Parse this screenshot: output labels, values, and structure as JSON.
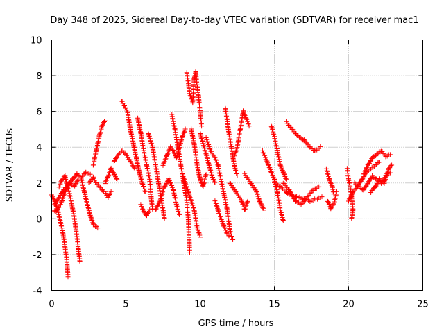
{
  "chart_data": {
    "type": "scatter",
    "title": "Day 348 of 2025, Sidereal Day-to-day VTEC variation (SDTVAR) for receiver mac1",
    "xlabel": "GPS time / hours",
    "ylabel": "SDTVAR / TECUs",
    "xlim": [
      0,
      25
    ],
    "ylim": [
      -4,
      10
    ],
    "x_ticks": [
      0,
      5,
      10,
      15,
      20,
      25
    ],
    "y_ticks": [
      -4,
      -2,
      0,
      2,
      4,
      6,
      8,
      10
    ],
    "x_tick_labels": [
      "0",
      "5",
      "10",
      "15",
      "20",
      "25"
    ],
    "y_tick_labels": [
      "-4",
      "-2",
      "0",
      "2",
      "4",
      "6",
      "8",
      "10"
    ],
    "grid": true,
    "marker": "+",
    "color": "#ff0000",
    "series": [
      {
        "name": "SDTVAR",
        "segments": [
          [
            [
              0.0,
              1.3
            ],
            [
              0.2,
              1.0
            ],
            [
              0.4,
              0.5
            ],
            [
              0.6,
              -0.2
            ],
            [
              0.8,
              -1.0
            ],
            [
              1.0,
              -2.2
            ],
            [
              1.1,
              -3.2
            ]
          ],
          [
            [
              0.0,
              0.5
            ],
            [
              0.3,
              0.4
            ],
            [
              0.6,
              0.8
            ],
            [
              0.9,
              1.5
            ],
            [
              1.2,
              2.0
            ],
            [
              1.5,
              1.8
            ],
            [
              1.8,
              2.2
            ]
          ],
          [
            [
              0.5,
              1.8
            ],
            [
              0.7,
              2.2
            ],
            [
              0.9,
              2.4
            ],
            [
              1.0,
              2.0
            ],
            [
              1.2,
              1.4
            ],
            [
              1.5,
              0.2
            ],
            [
              1.7,
              -1.0
            ],
            [
              1.9,
              -2.4
            ]
          ],
          [
            [
              0.2,
              0.8
            ],
            [
              0.5,
              1.2
            ],
            [
              0.8,
              1.6
            ],
            [
              1.1,
              1.9
            ],
            [
              1.4,
              2.2
            ],
            [
              1.7,
              2.5
            ],
            [
              2.0,
              2.3
            ],
            [
              2.3,
              2.6
            ],
            [
              2.6,
              2.5
            ]
          ],
          [
            [
              2.0,
              2.2
            ],
            [
              2.2,
              1.5
            ],
            [
              2.4,
              0.8
            ],
            [
              2.6,
              0.2
            ],
            [
              2.8,
              -0.3
            ],
            [
              3.1,
              -0.5
            ]
          ],
          [
            [
              2.5,
              2.0
            ],
            [
              2.8,
              2.3
            ],
            [
              3.0,
              2.0
            ],
            [
              3.2,
              1.8
            ],
            [
              3.4,
              1.6
            ],
            [
              3.6,
              1.5
            ],
            [
              3.8,
              1.2
            ],
            [
              4.0,
              1.5
            ]
          ],
          [
            [
              2.8,
              3.0
            ],
            [
              3.0,
              3.8
            ],
            [
              3.2,
              4.6
            ],
            [
              3.4,
              5.2
            ],
            [
              3.6,
              5.5
            ]
          ],
          [
            [
              3.6,
              2.0
            ],
            [
              3.8,
              2.4
            ],
            [
              4.0,
              2.8
            ],
            [
              4.2,
              2.5
            ],
            [
              4.4,
              2.2
            ]
          ],
          [
            [
              4.2,
              3.2
            ],
            [
              4.5,
              3.6
            ],
            [
              4.8,
              3.8
            ],
            [
              5.0,
              3.6
            ],
            [
              5.3,
              3.2
            ],
            [
              5.6,
              2.8
            ]
          ],
          [
            [
              4.7,
              6.6
            ],
            [
              4.9,
              6.3
            ],
            [
              5.1,
              6.0
            ],
            [
              5.3,
              5.0
            ],
            [
              5.5,
              4.2
            ],
            [
              5.7,
              3.4
            ],
            [
              5.9,
              2.6
            ],
            [
              6.1,
              2.0
            ],
            [
              6.3,
              1.5
            ]
          ],
          [
            [
              5.8,
              5.6
            ],
            [
              6.0,
              4.8
            ],
            [
              6.2,
              3.8
            ],
            [
              6.4,
              3.0
            ],
            [
              6.6,
              2.2
            ],
            [
              6.7,
              1.2
            ],
            [
              6.8,
              0.5
            ]
          ],
          [
            [
              6.0,
              0.8
            ],
            [
              6.2,
              0.4
            ],
            [
              6.4,
              0.2
            ],
            [
              6.6,
              0.5
            ]
          ],
          [
            [
              6.5,
              4.8
            ],
            [
              6.8,
              4.0
            ],
            [
              7.0,
              3.0
            ],
            [
              7.2,
              2.0
            ],
            [
              7.4,
              1.0
            ],
            [
              7.6,
              0.0
            ]
          ],
          [
            [
              7.0,
              0.5
            ],
            [
              7.3,
              1.0
            ],
            [
              7.6,
              1.8
            ],
            [
              7.9,
              2.2
            ],
            [
              8.2,
              1.6
            ],
            [
              8.4,
              0.8
            ],
            [
              8.6,
              0.2
            ]
          ],
          [
            [
              7.5,
              3.0
            ],
            [
              7.8,
              3.6
            ],
            [
              8.0,
              4.0
            ],
            [
              8.2,
              3.8
            ],
            [
              8.4,
              3.4
            ],
            [
              8.6,
              4.0
            ],
            [
              8.8,
              4.6
            ],
            [
              9.0,
              5.0
            ]
          ],
          [
            [
              8.1,
              5.8
            ],
            [
              8.3,
              5.0
            ],
            [
              8.5,
              4.0
            ],
            [
              8.7,
              3.0
            ],
            [
              8.9,
              2.0
            ],
            [
              9.1,
              1.0
            ],
            [
              9.2,
              0.0
            ],
            [
              9.3,
              -1.9
            ]
          ],
          [
            [
              8.8,
              2.5
            ],
            [
              9.0,
              2.0
            ],
            [
              9.2,
              1.5
            ],
            [
              9.4,
              1.0
            ],
            [
              9.6,
              0.5
            ],
            [
              9.8,
              -0.5
            ],
            [
              10.0,
              -1.0
            ]
          ],
          [
            [
              9.1,
              8.2
            ],
            [
              9.3,
              7.0
            ],
            [
              9.5,
              6.5
            ],
            [
              9.6,
              7.8
            ],
            [
              9.7,
              8.2
            ],
            [
              9.8,
              7.4
            ],
            [
              9.9,
              6.8
            ],
            [
              10.0,
              6.0
            ],
            [
              10.1,
              5.2
            ]
          ],
          [
            [
              9.4,
              5.0
            ],
            [
              9.6,
              4.2
            ],
            [
              9.8,
              3.0
            ],
            [
              10.0,
              2.2
            ],
            [
              10.2,
              1.8
            ],
            [
              10.4,
              2.5
            ]
          ],
          [
            [
              10.0,
              4.8
            ],
            [
              10.2,
              4.2
            ],
            [
              10.4,
              3.6
            ],
            [
              10.6,
              3.0
            ],
            [
              10.8,
              2.4
            ],
            [
              11.0,
              2.0
            ]
          ],
          [
            [
              10.4,
              4.5
            ],
            [
              10.7,
              3.8
            ],
            [
              11.0,
              3.4
            ],
            [
              11.2,
              3.0
            ],
            [
              11.4,
              2.2
            ],
            [
              11.6,
              1.4
            ],
            [
              11.8,
              0.6
            ],
            [
              12.0,
              -0.6
            ],
            [
              12.2,
              -1.2
            ]
          ],
          [
            [
              11.0,
              1.0
            ],
            [
              11.2,
              0.5
            ],
            [
              11.4,
              0.0
            ],
            [
              11.6,
              -0.4
            ],
            [
              11.8,
              -0.8
            ],
            [
              12.0,
              -1.0
            ]
          ],
          [
            [
              11.7,
              6.2
            ],
            [
              11.9,
              5.0
            ],
            [
              12.1,
              4.0
            ],
            [
              12.3,
              3.0
            ],
            [
              12.5,
              2.4
            ]
          ],
          [
            [
              12.3,
              3.5
            ],
            [
              12.5,
              4.0
            ],
            [
              12.7,
              5.0
            ],
            [
              12.9,
              6.0
            ],
            [
              13.1,
              5.6
            ],
            [
              13.3,
              5.2
            ]
          ],
          [
            [
              12.0,
              2.0
            ],
            [
              12.4,
              1.5
            ],
            [
              12.8,
              1.0
            ],
            [
              13.0,
              0.5
            ],
            [
              13.2,
              1.0
            ]
          ],
          [
            [
              13.0,
              2.5
            ],
            [
              13.4,
              2.0
            ],
            [
              13.8,
              1.5
            ],
            [
              14.0,
              1.0
            ],
            [
              14.3,
              0.5
            ]
          ],
          [
            [
              14.2,
              3.8
            ],
            [
              14.5,
              3.2
            ],
            [
              14.8,
              2.6
            ],
            [
              15.0,
              2.2
            ],
            [
              15.2,
              1.5
            ],
            [
              15.4,
              0.5
            ],
            [
              15.6,
              -0.1
            ]
          ],
          [
            [
              14.8,
              5.2
            ],
            [
              15.0,
              4.6
            ],
            [
              15.2,
              3.8
            ],
            [
              15.4,
              3.0
            ],
            [
              15.6,
              2.6
            ],
            [
              15.8,
              2.2
            ]
          ],
          [
            [
              15.0,
              2.0
            ],
            [
              15.4,
              1.8
            ],
            [
              15.8,
              1.5
            ],
            [
              16.2,
              1.3
            ],
            [
              16.6,
              1.2
            ],
            [
              17.0,
              1.1
            ],
            [
              17.4,
              1.0
            ],
            [
              17.8,
              1.1
            ],
            [
              18.2,
              1.2
            ]
          ],
          [
            [
              15.6,
              2.0
            ],
            [
              16.0,
              1.6
            ],
            [
              16.4,
              1.0
            ],
            [
              16.8,
              0.8
            ],
            [
              17.2,
              1.2
            ],
            [
              17.6,
              1.6
            ],
            [
              18.0,
              1.8
            ]
          ],
          [
            [
              15.8,
              5.4
            ],
            [
              16.2,
              5.0
            ],
            [
              16.6,
              4.6
            ],
            [
              17.0,
              4.4
            ],
            [
              17.4,
              4.0
            ],
            [
              17.7,
              3.8
            ],
            [
              18.1,
              4.0
            ]
          ],
          [
            [
              18.5,
              2.8
            ],
            [
              18.7,
              2.2
            ],
            [
              18.9,
              1.8
            ],
            [
              19.0,
              1.4
            ]
          ],
          [
            [
              18.6,
              1.0
            ],
            [
              18.8,
              0.6
            ],
            [
              19.0,
              0.8
            ],
            [
              19.2,
              1.5
            ]
          ],
          [
            [
              19.9,
              2.8
            ],
            [
              20.0,
              2.2
            ],
            [
              20.1,
              1.8
            ],
            [
              20.2,
              1.2
            ],
            [
              20.3,
              0.5
            ],
            [
              20.2,
              0.0
            ]
          ],
          [
            [
              20.0,
              1.0
            ],
            [
              20.3,
              1.5
            ],
            [
              20.6,
              1.8
            ],
            [
              20.9,
              2.2
            ],
            [
              21.2,
              2.6
            ],
            [
              21.5,
              2.8
            ],
            [
              21.8,
              3.0
            ],
            [
              22.1,
              3.2
            ]
          ],
          [
            [
              20.4,
              2.0
            ],
            [
              20.7,
              1.8
            ],
            [
              21.0,
              1.6
            ],
            [
              21.3,
              2.0
            ],
            [
              21.6,
              2.4
            ],
            [
              21.9,
              2.2
            ],
            [
              22.2,
              2.0
            ],
            [
              22.5,
              2.4
            ],
            [
              22.8,
              2.6
            ]
          ],
          [
            [
              21.0,
              2.5
            ],
            [
              21.3,
              3.0
            ],
            [
              21.6,
              3.4
            ],
            [
              21.9,
              3.6
            ],
            [
              22.2,
              3.8
            ],
            [
              22.5,
              3.5
            ],
            [
              22.8,
              3.6
            ]
          ],
          [
            [
              21.5,
              1.5
            ],
            [
              21.8,
              1.8
            ],
            [
              22.1,
              2.2
            ],
            [
              22.4,
              2.0
            ],
            [
              22.7,
              2.8
            ],
            [
              22.9,
              3.0
            ]
          ]
        ]
      }
    ]
  }
}
